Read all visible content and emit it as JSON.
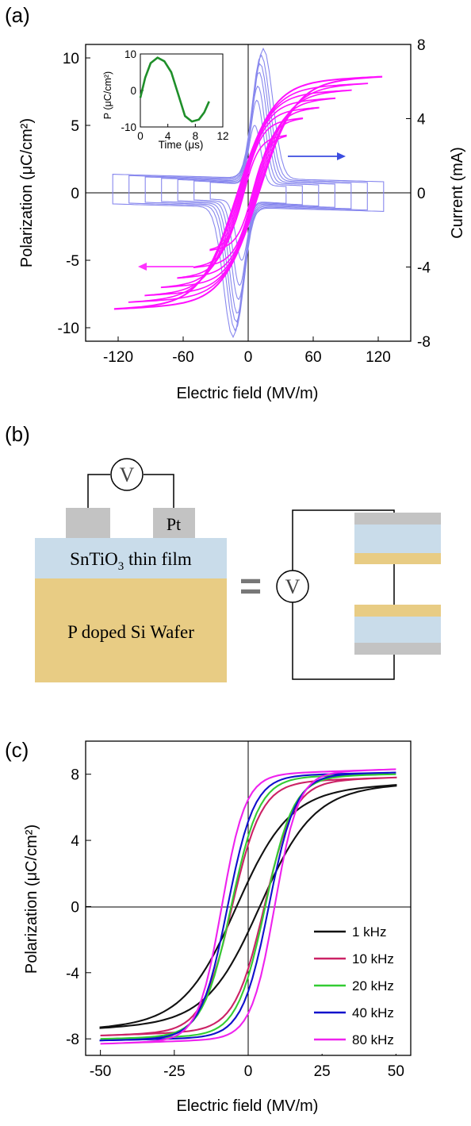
{
  "panel_labels": {
    "a": "(a)",
    "b": "(b)",
    "c": "(c)"
  },
  "colors": {
    "pe_loop": "#ff10ff",
    "current": "#8888ee",
    "inset_line": "#1f8f2a",
    "axis": "#000000",
    "electrode": "#c3c3c3",
    "film": "#c9dcea",
    "substrate": "#e8cc84",
    "arrow_blue": "#3b4ce0",
    "arrow_magenta": "#ff33ff"
  },
  "panel_a": {
    "xlabel": "Electric field (MV/m)",
    "ylabel_left": "Polarization (μC/cm²)",
    "ylabel_right": "Current (mA)",
    "xticks": [
      "-120",
      "-60",
      "0",
      "60",
      "120"
    ],
    "yticks_left": [
      "10",
      "5",
      "0",
      "-5",
      "-10"
    ],
    "yticks_right": [
      "8",
      "4",
      "0",
      "-4",
      "-8"
    ],
    "inset": {
      "ylabel": "P (μC/cm²)",
      "xlabel": "Time (μs)",
      "xticks": [
        "0",
        "4",
        "8",
        "12"
      ],
      "yticks": [
        "10",
        "0",
        "-10"
      ]
    }
  },
  "panel_b": {
    "meter_label": "V",
    "electrode_label": "Pt",
    "film_label_pre": "SnTiO",
    "film_label_sub": "3",
    "film_label_post": " thin film",
    "substrate_label": "P doped Si Wafer",
    "equals": "=",
    "source_label": "V"
  },
  "panel_c": {
    "xlabel": "Electric field (MV/m)",
    "ylabel": "Polarization (μC/cm²)",
    "xticks": [
      "-50",
      "-25",
      "0",
      "25",
      "50"
    ],
    "yticks": [
      "8",
      "4",
      "0",
      "-4",
      "-8"
    ],
    "legend": [
      "1 kHz",
      "10 kHz",
      "20 kHz",
      "40 kHz",
      "80 kHz"
    ]
  },
  "chart_data": [
    {
      "type": "line",
      "title": "",
      "xlabel": "Electric field (MV/m)",
      "ylabel": "Polarization (μC/cm²)",
      "y2label": "Current (mA)",
      "xlim": [
        -150,
        150
      ],
      "ylim": [
        -11,
        11
      ],
      "y2lim": [
        -8,
        8
      ],
      "grid": false,
      "series": [
        {
          "axis": "left",
          "color": "#ff10ff",
          "emax": [
            35,
            50,
            65,
            80,
            95,
            110,
            123
          ],
          "pmax": [
            4.2,
            5.5,
            6.3,
            7.0,
            7.6,
            8.1,
            8.6
          ],
          "ec": [
            4,
            5,
            6,
            7,
            8,
            9,
            10
          ]
        },
        {
          "axis": "right",
          "color": "#8888ee",
          "emax": [
            35,
            50,
            65,
            80,
            95,
            110,
            125
          ],
          "ipeak": [
            3.2,
            4.5,
            5.2,
            5.9,
            6.3,
            6.7,
            7.0
          ],
          "ec": [
            6,
            8,
            9,
            10,
            11,
            12,
            14
          ],
          "ibase": 0.8
        }
      ]
    },
    {
      "type": "line",
      "title": "",
      "xlabel": "Time (μs)",
      "ylabel": "P (μC/cm²)",
      "xlim": [
        0,
        12
      ],
      "ylim": [
        -10,
        10
      ],
      "series": [
        {
          "color": "#1f8f2a",
          "x": [
            0,
            0.7,
            1.5,
            2.5,
            3.5,
            4.5,
            5.5,
            6.5,
            7.5,
            8.5,
            9.3,
            10
          ],
          "y": [
            -2,
            3.5,
            7.5,
            9,
            8,
            5,
            -1,
            -7,
            -8.5,
            -8,
            -6,
            -3
          ]
        }
      ]
    },
    {
      "type": "line",
      "title": "",
      "xlabel": "Electric field (MV/m)",
      "ylabel": "Polarization (μC/cm²)",
      "xlim": [
        -55,
        55
      ],
      "ylim": [
        -9,
        10
      ],
      "grid": false,
      "legend_position": "bottom-right",
      "series": [
        {
          "name": "1 kHz",
          "color": "#111111",
          "emax": 50,
          "pmax": 7.3,
          "ec": 4,
          "ps": 7.0,
          "e0": 18
        },
        {
          "name": "10 kHz",
          "color": "#cc2266",
          "emax": 50,
          "pmax": 7.8,
          "ec": 5.5,
          "ps": 7.5,
          "e0": 10
        },
        {
          "name": "20 kHz",
          "color": "#33cc33",
          "emax": 50,
          "pmax": 8.0,
          "ec": 5.8,
          "ps": 7.8,
          "e0": 9.5
        },
        {
          "name": "40 kHz",
          "color": "#1010cc",
          "emax": 50,
          "pmax": 8.1,
          "ec": 7,
          "ps": 7.9,
          "e0": 9
        },
        {
          "name": "80 kHz",
          "color": "#ee22ee",
          "emax": 50,
          "pmax": 8.3,
          "ec": 9,
          "ps": 8.0,
          "e0": 8
        }
      ]
    }
  ]
}
